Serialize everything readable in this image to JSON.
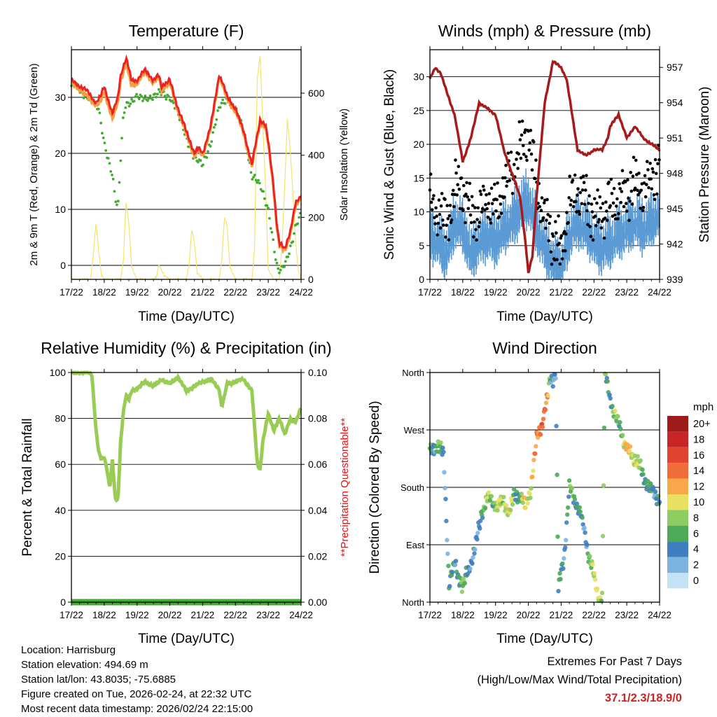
{
  "colors": {
    "temp2m": "#ee2222",
    "temp9m": "#f5a040",
    "dewpoint": "#44aa33",
    "solar": "#f3e36a",
    "wind": "#000000",
    "gust": "#5b9bd5",
    "pressure": "#a61c1c",
    "humidity": "#99cc55",
    "precip": "#44aa33",
    "questionable": "#ee1111",
    "extremes": "#cc2222"
  },
  "time_ticks": [
    "17/22",
    "18/22",
    "19/22",
    "20/22",
    "21/22",
    "22/22",
    "23/22",
    "24/22"
  ],
  "chart_data": [
    {
      "id": "temperature",
      "type": "line",
      "title": "Temperature (F)",
      "xlabel": "Time (Day/UTC)",
      "ylabel": "2m & 9m T (Red, Orange) & 2m Td (Green)",
      "y2label": "Solar Insolation (Yellow)",
      "x_unit": "hours since 17/22 UTC",
      "xlim": [
        0,
        168
      ],
      "ylim": [
        -2.5,
        38.5
      ],
      "yticks": [
        0,
        10,
        20,
        30
      ],
      "y2lim": [
        0,
        740
      ],
      "y2ticks": [
        0,
        200,
        400,
        600
      ],
      "series": [
        {
          "name": "2m T",
          "axis": "left",
          "x": [
            0,
            6,
            12,
            18,
            21,
            24,
            30,
            34,
            36,
            40,
            42,
            44,
            48,
            54,
            60,
            64,
            66,
            72,
            78,
            84,
            90,
            93,
            96,
            102,
            106,
            108,
            110,
            114,
            120,
            126,
            132,
            138,
            142,
            144,
            148,
            150,
            152,
            156,
            160,
            164,
            168
          ],
          "values": [
            33,
            32,
            31,
            29,
            30,
            32,
            27,
            30,
            34,
            37,
            35,
            33,
            33,
            35,
            33,
            34,
            32,
            33,
            28,
            24,
            20,
            21,
            20,
            25,
            31,
            34,
            33,
            30,
            28,
            24,
            18,
            26,
            25,
            22,
            14,
            8,
            4,
            3,
            6,
            11,
            12.5
          ]
        },
        {
          "name": "9m T",
          "axis": "left",
          "x": [
            0,
            6,
            12,
            18,
            21,
            24,
            30,
            34,
            36,
            40,
            42,
            44,
            48,
            54,
            60,
            64,
            66,
            72,
            78,
            84,
            90,
            93,
            96,
            102,
            106,
            108,
            110,
            114,
            120,
            126,
            132,
            138,
            142,
            144,
            148,
            150,
            152,
            156,
            160,
            164,
            168
          ],
          "values": [
            32.5,
            31.5,
            30,
            28.5,
            29,
            31,
            26,
            29,
            33,
            36,
            34,
            32,
            32.5,
            34.5,
            32.5,
            33.5,
            31.5,
            32.5,
            27.5,
            23.5,
            19.5,
            20.5,
            19.5,
            24.5,
            30.5,
            33.5,
            32.5,
            29.5,
            27.5,
            23.5,
            17.5,
            25.5,
            24.5,
            21.5,
            13.5,
            7.5,
            3.5,
            2.5,
            5.5,
            10.5,
            12
          ]
        },
        {
          "name": "2m Td",
          "axis": "left",
          "x": [
            0,
            4,
            8,
            12,
            16,
            20,
            22,
            24,
            26,
            28,
            30,
            32,
            34,
            36,
            38,
            40,
            44,
            48,
            54,
            60,
            66,
            72,
            78,
            84,
            90,
            96,
            102,
            108,
            114,
            120,
            126,
            132,
            134,
            138,
            144,
            148,
            150,
            152,
            154,
            156,
            160,
            164,
            168
          ],
          "values": [
            32,
            32,
            31,
            30,
            29,
            28,
            25,
            22,
            20,
            18,
            16,
            12,
            10,
            19,
            27,
            29,
            29,
            30,
            30,
            30,
            31,
            30,
            27,
            23,
            19,
            18,
            22,
            28,
            30,
            28,
            24,
            16,
            16,
            14,
            10,
            4,
            0,
            -1,
            -1,
            0,
            3,
            7,
            9
          ]
        },
        {
          "name": "Solar Insolation",
          "axis": "right",
          "x": [
            0,
            14,
            16,
            18,
            20,
            22,
            24,
            36,
            38,
            40,
            42,
            44,
            48,
            60,
            62,
            64,
            66,
            68,
            72,
            84,
            86,
            88,
            90,
            92,
            96,
            108,
            110,
            112,
            114,
            116,
            120,
            132,
            134,
            136,
            138,
            140,
            142,
            144,
            148,
            152,
            154,
            156,
            158,
            160,
            162,
            164,
            166,
            168
          ],
          "values": [
            0,
            0,
            80,
            180,
            90,
            15,
            0,
            0,
            60,
            250,
            180,
            40,
            0,
            0,
            5,
            50,
            30,
            10,
            0,
            0,
            40,
            160,
            120,
            20,
            0,
            0,
            60,
            200,
            170,
            40,
            0,
            0,
            100,
            650,
            720,
            500,
            300,
            30,
            0,
            0,
            100,
            300,
            520,
            420,
            280,
            120,
            30,
            0
          ]
        }
      ]
    },
    {
      "id": "winds",
      "type": "scatter",
      "title": "Winds (mph) & Pressure (mb)",
      "xlabel": "Time (Day/UTC)",
      "ylabel": "Sonic Wind & Gust (Blue, Black)",
      "y2label": "Station Pressure (Maroon)",
      "xlim": [
        0,
        168
      ],
      "ylim": [
        0,
        34
      ],
      "yticks": [
        0,
        5,
        10,
        15,
        20,
        25,
        30
      ],
      "y2lim": [
        939,
        958.5
      ],
      "y2ticks": [
        939,
        942,
        945,
        948,
        951,
        954,
        957
      ],
      "series": [
        {
          "name": "Sonic Wind",
          "axis": "left",
          "x": [
            0,
            6,
            12,
            18,
            24,
            30,
            36,
            42,
            48,
            54,
            60,
            66,
            72,
            78,
            84,
            90,
            96,
            102,
            108,
            114,
            120,
            126,
            132,
            138,
            144,
            150,
            156,
            162,
            168
          ],
          "values": [
            7,
            6,
            4,
            9,
            8,
            4,
            6,
            7,
            6,
            8,
            9,
            11,
            12,
            8,
            5,
            3,
            2,
            7,
            9,
            8,
            6,
            5,
            6,
            7,
            8,
            9,
            8,
            9,
            10
          ]
        },
        {
          "name": "Gust",
          "axis": "left",
          "x": [
            0,
            6,
            12,
            18,
            24,
            30,
            36,
            42,
            48,
            54,
            60,
            66,
            72,
            78,
            84,
            90,
            96,
            102,
            108,
            114,
            120,
            126,
            132,
            138,
            144,
            150,
            156,
            162,
            168
          ],
          "values": [
            11,
            10,
            8,
            13,
            14,
            9,
            10,
            12,
            10,
            14,
            16,
            19,
            22,
            14,
            9,
            6,
            4,
            11,
            13,
            12,
            9,
            10,
            11,
            12,
            13,
            14,
            13,
            15,
            17
          ]
        },
        {
          "name": "Station Pressure",
          "axis": "right",
          "x": [
            0,
            4,
            8,
            12,
            18,
            24,
            30,
            36,
            42,
            48,
            54,
            60,
            66,
            70,
            72,
            75,
            78,
            84,
            90,
            96,
            100,
            104,
            108,
            114,
            120,
            126,
            130,
            132,
            138,
            144,
            150,
            156,
            162,
            168
          ],
          "values": [
            956,
            957,
            956.5,
            955,
            953,
            949,
            951,
            954,
            953.5,
            953,
            950,
            948,
            946,
            942,
            939.5,
            941,
            946,
            954,
            957.5,
            957,
            956,
            953,
            950,
            949.5,
            950,
            950,
            951,
            952,
            953,
            951,
            952,
            951,
            950.5,
            950
          ]
        }
      ]
    },
    {
      "id": "humidity",
      "type": "line",
      "title": "Relative Humidity (%) & Precipitation (in)",
      "xlabel": "Time (Day/UTC)",
      "ylabel": "Percent & Total Rainfall",
      "y2label": "**Precipitation Questionable**",
      "xlim": [
        0,
        168
      ],
      "ylim": [
        0,
        100
      ],
      "yticks": [
        0,
        20,
        40,
        60,
        80,
        100
      ],
      "y2lim": [
        0,
        0.1
      ],
      "y2ticks": [
        "0.00",
        "0.02",
        "0.04",
        "0.06",
        "0.08",
        "0.10"
      ],
      "series": [
        {
          "name": "Relative Humidity",
          "axis": "left",
          "x": [
            0,
            6,
            12,
            15,
            18,
            20,
            22,
            24,
            26,
            28,
            30,
            32,
            34,
            36,
            38,
            40,
            42,
            44,
            48,
            54,
            60,
            66,
            72,
            78,
            84,
            90,
            96,
            102,
            108,
            110,
            114,
            120,
            126,
            132,
            136,
            138,
            140,
            144,
            148,
            152,
            156,
            160,
            164,
            168
          ],
          "values": [
            100,
            100,
            100,
            99,
            75,
            65,
            62,
            63,
            58,
            50,
            62,
            45,
            44,
            70,
            83,
            90,
            88,
            92,
            93,
            96,
            94,
            97,
            95,
            98,
            92,
            94,
            96,
            97,
            93,
            85,
            95,
            96,
            97,
            92,
            60,
            58,
            70,
            82,
            75,
            80,
            73,
            80,
            78,
            85
          ]
        },
        {
          "name": "Total Precipitation",
          "axis": "right",
          "x": [
            0,
            168
          ],
          "values": [
            0,
            0
          ]
        }
      ]
    },
    {
      "id": "wind_direction",
      "type": "scatter",
      "title": "Wind Direction",
      "xlabel": "Time (Day/UTC)",
      "ylabel": "Direction (Colored By Speed)",
      "xlim": [
        0,
        168
      ],
      "ylim": [
        0,
        360
      ],
      "ytick_labels": [
        "North",
        "East",
        "South",
        "West",
        "North"
      ],
      "yticks": [
        0,
        90,
        180,
        270,
        360
      ],
      "legend_title": "mph",
      "legend_labels": [
        "20+",
        "18",
        "16",
        "14",
        "12",
        "10",
        "8",
        "6",
        "4",
        "2",
        "0"
      ],
      "legend_colors": [
        "#9e1b1b",
        "#c82626",
        "#e04530",
        "#f06d3a",
        "#f8a84a",
        "#e8e060",
        "#8ccc60",
        "#4daa58",
        "#3f7fc0",
        "#7cb3e0",
        "#c3e3f5"
      ],
      "points": {
        "x": [
          0,
          3,
          6,
          10,
          14,
          18,
          21,
          24,
          27,
          30,
          34,
          38,
          42,
          46,
          50,
          54,
          58,
          62,
          66,
          70,
          74,
          78,
          82,
          86,
          88,
          90,
          92,
          94,
          96,
          98,
          100,
          102,
          104,
          106,
          108,
          110,
          112,
          114,
          116,
          118,
          120,
          122,
          124,
          126,
          128,
          130,
          132,
          134,
          136,
          138,
          140,
          142,
          144,
          148,
          152,
          156,
          160,
          164,
          168
        ],
        "dir": [
          235,
          240,
          250,
          230,
          30,
          60,
          40,
          25,
          45,
          60,
          95,
          140,
          165,
          155,
          150,
          160,
          140,
          170,
          165,
          150,
          180,
          255,
          280,
          320,
          355,
          350,
          360,
          20,
          50,
          70,
          120,
          180,
          170,
          160,
          150,
          140,
          120,
          100,
          75,
          60,
          40,
          20,
          5,
          10,
          360,
          340,
          320,
          300,
          290,
          280,
          270,
          250,
          240,
          230,
          220,
          200,
          180,
          170,
          160
        ],
        "speed": [
          6,
          4,
          8,
          3,
          5,
          4,
          6,
          7,
          5,
          4,
          3,
          6,
          8,
          7,
          9,
          8,
          10,
          6,
          5,
          12,
          9,
          14,
          15,
          12,
          5,
          4,
          3,
          5,
          6,
          4,
          3,
          5,
          7,
          6,
          4,
          5,
          3,
          4,
          6,
          7,
          8,
          11,
          9,
          7,
          6,
          5,
          4,
          6,
          8,
          7,
          6,
          9,
          12,
          10,
          8,
          6,
          5,
          4,
          5
        ]
      }
    }
  ],
  "info": {
    "location": "Location: Harrisburg",
    "elevation": "Station elevation: 494.69 m",
    "latlon": "Station lat/lon: 43.8035; -75.6885",
    "created": "Figure created on Tue, 2026-02-24, at 22:32 UTC",
    "recent": "Most recent data timestamp: 2026/02/24 22:15:00"
  },
  "extremes": {
    "title": "Extremes For Past 7 Days",
    "subtitle": "(High/Low/Max Wind/Total Precipitation)",
    "values": "37.1/2.3/18.9/0"
  }
}
